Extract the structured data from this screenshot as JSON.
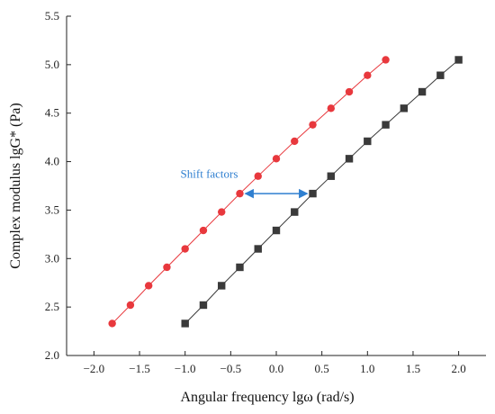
{
  "chart_data": {
    "type": "scatter",
    "xlabel": "Angular frequency lgω (rad/s)",
    "ylabel": "Complex modulus lgG* (Pa)",
    "xlim": [
      -2.3,
      2.3
    ],
    "ylim": [
      2.0,
      5.5
    ],
    "xticks": [
      -2.0,
      -1.5,
      -1.0,
      -0.5,
      0.0,
      0.5,
      1.0,
      1.5,
      2.0
    ],
    "xtick_labels": [
      "−2.0",
      "−1.5",
      "−1.0",
      "−0.5",
      "0.0",
      "0.5",
      "1.0",
      "1.5",
      "2.0"
    ],
    "yticks": [
      2.0,
      2.5,
      3.0,
      3.5,
      4.0,
      4.5,
      5.0,
      5.5
    ],
    "ytick_labels": [
      "2.0",
      "2.5",
      "3.0",
      "3.5",
      "4.0",
      "4.5",
      "5.0",
      "5.5"
    ],
    "grid": false,
    "series": [
      {
        "color": "#e8383d",
        "marker": "circle",
        "x": [
          -1.8,
          -1.6,
          -1.4,
          -1.2,
          -1.0,
          -0.8,
          -0.6,
          -0.4,
          -0.2,
          0.0,
          0.2,
          0.4,
          0.6,
          0.8,
          1.0,
          1.2
        ],
        "y": [
          2.33,
          2.52,
          2.72,
          2.91,
          3.1,
          3.29,
          3.48,
          3.67,
          3.85,
          4.03,
          4.21,
          4.38,
          4.55,
          4.72,
          4.89,
          5.05
        ]
      },
      {
        "color": "#3a3a3a",
        "marker": "square",
        "x": [
          -1.0,
          -0.8,
          -0.6,
          -0.4,
          -0.2,
          0.0,
          0.2,
          0.4,
          0.6,
          0.8,
          1.0,
          1.2,
          1.4,
          1.6,
          1.8,
          2.0
        ],
        "y": [
          2.33,
          2.52,
          2.72,
          2.91,
          3.1,
          3.29,
          3.48,
          3.67,
          3.85,
          4.03,
          4.21,
          4.38,
          4.55,
          4.72,
          4.89,
          5.05
        ]
      }
    ],
    "annotation": {
      "text": "Shift factors",
      "color": "#2f7fd0",
      "arrow_from": [
        -0.4,
        3.67
      ],
      "arrow_to": [
        0.4,
        3.67
      ],
      "text_at": [
        -0.42,
        3.87
      ]
    }
  }
}
